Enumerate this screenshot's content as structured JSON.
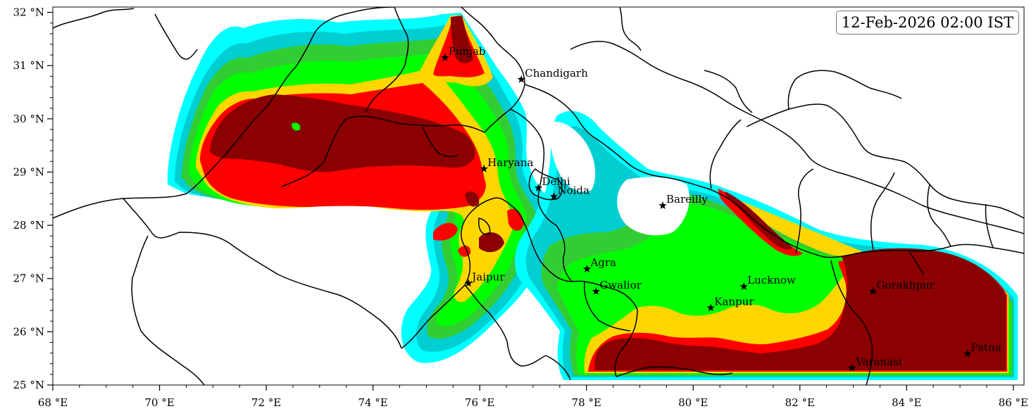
{
  "timestamp": "12-Feb-2026 02:00 IST",
  "map": {
    "lon_range": [
      68,
      86.2
    ],
    "lat_range": [
      25,
      32.1
    ],
    "x_ticks": [
      {
        "value": 68,
        "label": "68 °E"
      },
      {
        "value": 70,
        "label": "70 °E"
      },
      {
        "value": 72,
        "label": "72 °E"
      },
      {
        "value": 74,
        "label": "74 °E"
      },
      {
        "value": 76,
        "label": "76 °E"
      },
      {
        "value": 78,
        "label": "78 °E"
      },
      {
        "value": 80,
        "label": "80 °E"
      },
      {
        "value": 82,
        "label": "82 °E"
      },
      {
        "value": 84,
        "label": "84 °E"
      },
      {
        "value": 86,
        "label": "86 °E"
      }
    ],
    "y_ticks": [
      {
        "value": 32,
        "label": "32 °N"
      },
      {
        "value": 31,
        "label": "31 °N"
      },
      {
        "value": 30,
        "label": "30 °N"
      },
      {
        "value": 29,
        "label": "29 °N"
      },
      {
        "value": 28,
        "label": "28 °N"
      },
      {
        "value": 27,
        "label": "27 °N"
      },
      {
        "value": 26,
        "label": "26 °N"
      },
      {
        "value": 25,
        "label": "25 °N"
      }
    ],
    "fill_colors": {
      "level1": "#00ffff",
      "level2": "#00ced1",
      "level3": "#32cd32",
      "level4": "#00ff00",
      "level5": "#ffd700",
      "level6": "#ff0000",
      "level7": "#8b0000"
    },
    "cities": [
      {
        "name": "Punjab",
        "lon": 75.35,
        "lat": 31.15
      },
      {
        "name": "Chandigarh",
        "lon": 76.78,
        "lat": 30.74
      },
      {
        "name": "Haryana",
        "lon": 76.08,
        "lat": 29.06
      },
      {
        "name": "Delhi",
        "lon": 77.1,
        "lat": 28.7
      },
      {
        "name": "Noida",
        "lon": 77.39,
        "lat": 28.54
      },
      {
        "name": "Bareilly",
        "lon": 79.43,
        "lat": 28.37
      },
      {
        "name": "Agra",
        "lon": 78.01,
        "lat": 27.18
      },
      {
        "name": "Jaipur",
        "lon": 75.79,
        "lat": 26.91
      },
      {
        "name": "Gwalior",
        "lon": 78.18,
        "lat": 26.76
      },
      {
        "name": "Lucknow",
        "lon": 80.95,
        "lat": 26.85
      },
      {
        "name": "Kanpur",
        "lon": 80.33,
        "lat": 26.45
      },
      {
        "name": "Gorakhpur",
        "lon": 83.37,
        "lat": 26.76
      },
      {
        "name": "Varanasi",
        "lon": 82.98,
        "lat": 25.32
      },
      {
        "name": "Patna",
        "lon": 85.14,
        "lat": 25.59
      }
    ]
  }
}
